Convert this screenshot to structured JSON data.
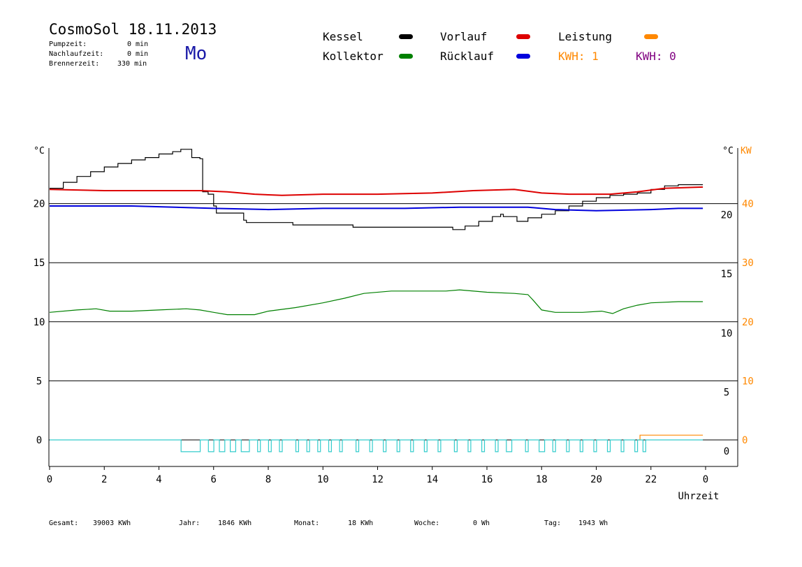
{
  "header": {
    "title": "CosmoSol 18.11.2013",
    "day": "Mo",
    "stats": [
      {
        "label": "Pumpzeit:",
        "value": "0 min"
      },
      {
        "label": "Nachlaufzeit:",
        "value": "0 min"
      },
      {
        "label": "Brennerzeit:",
        "value": "330 min"
      }
    ]
  },
  "legend": {
    "kessel": {
      "label": "Kessel",
      "color": "#000000"
    },
    "vorlauf": {
      "label": "Vorlauf",
      "color": "#dd0000"
    },
    "leistung": {
      "label": "Leistung",
      "color": "#ff8800"
    },
    "kollektor": {
      "label": "Kollektor",
      "color": "#008000"
    },
    "ruecklauf": {
      "label": "Rücklauf",
      "color": "#0000dd"
    },
    "kwh1": {
      "label": "KWH: 1",
      "color": "#ff8800"
    },
    "kwh2": {
      "label": "KWH: 0",
      "color": "#800080"
    }
  },
  "footer": {
    "gesamt": {
      "label": "Gesamt:",
      "value": "39003 KWh"
    },
    "jahr": {
      "label": "Jahr:",
      "value": "1846 KWh"
    },
    "monat": {
      "label": "Monat:",
      "value": "18 KWh"
    },
    "woche": {
      "label": "Woche:",
      "value": "0 Wh"
    },
    "tag": {
      "label": "Tag:",
      "value": "1943 Wh"
    }
  },
  "chart_data": {
    "type": "line",
    "xlabel": "Uhrzeit",
    "x_ticks": [
      "0",
      "2",
      "4",
      "6",
      "8",
      "10",
      "12",
      "14",
      "16",
      "18",
      "20",
      "22",
      "0"
    ],
    "y_left_unit": "°C",
    "y_right_unit": "°C",
    "y_right2_unit": "KW",
    "y_left_ticks": [
      "0",
      "5",
      "10",
      "15",
      "20"
    ],
    "y_right_ticks": [
      "0",
      "5",
      "10",
      "15",
      "20"
    ],
    "y_right2_ticks": [
      "0",
      "10",
      "20",
      "30",
      "40"
    ],
    "ylim": [
      -2,
      25
    ],
    "xlim": [
      0,
      24
    ],
    "series": [
      {
        "name": "Kessel",
        "color": "#000000",
        "step": true,
        "points": [
          [
            0,
            21.3
          ],
          [
            0.5,
            21.8
          ],
          [
            1,
            22.3
          ],
          [
            1.5,
            22.7
          ],
          [
            2,
            23.1
          ],
          [
            2.5,
            23.4
          ],
          [
            3,
            23.7
          ],
          [
            3.5,
            23.9
          ],
          [
            4,
            24.2
          ],
          [
            4.5,
            24.4
          ],
          [
            4.8,
            24.6
          ],
          [
            5.1,
            24.6
          ],
          [
            5.2,
            23.9
          ],
          [
            5.5,
            23.8
          ],
          [
            5.6,
            21.0
          ],
          [
            5.8,
            20.8
          ],
          [
            6.0,
            19.8
          ],
          [
            6.1,
            19.2
          ],
          [
            7.0,
            19.2
          ],
          [
            7.1,
            18.6
          ],
          [
            7.2,
            18.4
          ],
          [
            8.8,
            18.4
          ],
          [
            8.9,
            18.2
          ],
          [
            11.0,
            18.2
          ],
          [
            11.1,
            18.0
          ],
          [
            14.7,
            18.0
          ],
          [
            14.75,
            17.8
          ],
          [
            15.2,
            18.1
          ],
          [
            15.7,
            18.5
          ],
          [
            16.2,
            18.9
          ],
          [
            16.5,
            19.1
          ],
          [
            16.6,
            18.9
          ],
          [
            16.9,
            18.9
          ],
          [
            17.1,
            18.5
          ],
          [
            17.5,
            18.8
          ],
          [
            18.0,
            19.1
          ],
          [
            18.5,
            19.4
          ],
          [
            19.0,
            19.8
          ],
          [
            19.5,
            20.2
          ],
          [
            20.0,
            20.5
          ],
          [
            20.5,
            20.7
          ],
          [
            21.0,
            20.8
          ],
          [
            21.5,
            20.9
          ],
          [
            22.0,
            21.2
          ],
          [
            22.5,
            21.5
          ],
          [
            23.0,
            21.6
          ],
          [
            23.9,
            21.6
          ]
        ]
      },
      {
        "name": "Vorlauf",
        "color": "#dd0000",
        "step": false,
        "points": [
          [
            0,
            21.2
          ],
          [
            2,
            21.1
          ],
          [
            4,
            21.1
          ],
          [
            5.5,
            21.1
          ],
          [
            6.5,
            21.0
          ],
          [
            7.5,
            20.8
          ],
          [
            8.5,
            20.7
          ],
          [
            10,
            20.8
          ],
          [
            12,
            20.8
          ],
          [
            14,
            20.9
          ],
          [
            15.5,
            21.1
          ],
          [
            17,
            21.2
          ],
          [
            18,
            20.9
          ],
          [
            19,
            20.8
          ],
          [
            20.5,
            20.8
          ],
          [
            21.5,
            21.0
          ],
          [
            22.5,
            21.3
          ],
          [
            23.9,
            21.4
          ]
        ]
      },
      {
        "name": "Rücklauf",
        "color": "#0000dd",
        "step": false,
        "points": [
          [
            0,
            19.8
          ],
          [
            3,
            19.8
          ],
          [
            6,
            19.6
          ],
          [
            8,
            19.5
          ],
          [
            10,
            19.6
          ],
          [
            13,
            19.6
          ],
          [
            15,
            19.7
          ],
          [
            17.5,
            19.7
          ],
          [
            18.5,
            19.5
          ],
          [
            20,
            19.4
          ],
          [
            22,
            19.5
          ],
          [
            23,
            19.6
          ],
          [
            23.9,
            19.6
          ]
        ]
      },
      {
        "name": "Kollektor",
        "color": "#008000",
        "step": false,
        "points": [
          [
            0,
            10.8
          ],
          [
            1,
            11.0
          ],
          [
            1.7,
            11.1
          ],
          [
            2.2,
            10.9
          ],
          [
            3,
            10.9
          ],
          [
            4,
            11.0
          ],
          [
            5,
            11.1
          ],
          [
            5.5,
            11.0
          ],
          [
            6,
            10.8
          ],
          [
            6.5,
            10.6
          ],
          [
            7.5,
            10.6
          ],
          [
            8,
            10.9
          ],
          [
            9,
            11.2
          ],
          [
            10,
            11.6
          ],
          [
            10.8,
            12.0
          ],
          [
            11.5,
            12.4
          ],
          [
            12.5,
            12.6
          ],
          [
            13.5,
            12.6
          ],
          [
            14.5,
            12.6
          ],
          [
            15,
            12.7
          ],
          [
            16,
            12.5
          ],
          [
            17,
            12.4
          ],
          [
            17.5,
            12.3
          ],
          [
            17.7,
            11.8
          ],
          [
            18,
            11.0
          ],
          [
            18.5,
            10.8
          ],
          [
            19.5,
            10.8
          ],
          [
            20.2,
            10.9
          ],
          [
            20.6,
            10.7
          ],
          [
            21,
            11.1
          ],
          [
            21.5,
            11.4
          ],
          [
            22,
            11.6
          ],
          [
            23,
            11.7
          ],
          [
            23.9,
            11.7
          ]
        ]
      },
      {
        "name": "Leistung",
        "color": "#ff8800",
        "step": true,
        "points": [
          [
            21.55,
            0
          ],
          [
            21.6,
            0.4
          ],
          [
            23.9,
            0.4
          ]
        ]
      },
      {
        "name": "Brenner",
        "color": "#33cccc",
        "step": true,
        "points": [
          [
            0,
            0
          ],
          [
            4.8,
            0
          ],
          [
            4.81,
            -1.0
          ],
          [
            5.5,
            -1.0
          ],
          [
            5.51,
            0
          ],
          [
            5.8,
            0
          ],
          [
            5.81,
            -1.0
          ],
          [
            6.0,
            -1.0
          ],
          [
            6.01,
            0
          ],
          [
            6.2,
            0
          ],
          [
            6.21,
            -1.0
          ],
          [
            6.4,
            -1.0
          ],
          [
            6.41,
            0
          ],
          [
            6.6,
            0
          ],
          [
            6.61,
            -1.0
          ],
          [
            6.8,
            -1.0
          ],
          [
            6.81,
            0
          ],
          [
            7.0,
            0
          ],
          [
            7.01,
            -1.0
          ],
          [
            7.3,
            -1.0
          ],
          [
            7.31,
            0
          ],
          [
            7.6,
            0
          ],
          [
            7.61,
            -1.0
          ],
          [
            7.7,
            -1.0
          ],
          [
            7.71,
            0
          ],
          [
            8.0,
            0
          ],
          [
            8.01,
            -1.0
          ],
          [
            8.1,
            -1.0
          ],
          [
            8.11,
            0
          ],
          [
            8.4,
            0
          ],
          [
            8.41,
            -1.0
          ],
          [
            8.5,
            -1.0
          ],
          [
            8.51,
            0
          ],
          [
            9.0,
            0
          ],
          [
            9.01,
            -1.0
          ],
          [
            9.1,
            -1.0
          ],
          [
            9.11,
            0
          ],
          [
            9.4,
            0
          ],
          [
            9.41,
            -1.0
          ],
          [
            9.5,
            -1.0
          ],
          [
            9.51,
            0
          ],
          [
            9.8,
            0
          ],
          [
            9.81,
            -1.0
          ],
          [
            9.9,
            -1.0
          ],
          [
            9.91,
            0
          ],
          [
            10.2,
            0
          ],
          [
            10.21,
            -1.0
          ],
          [
            10.3,
            -1.0
          ],
          [
            10.31,
            0
          ],
          [
            10.6,
            0
          ],
          [
            10.61,
            -1.0
          ],
          [
            10.7,
            -1.0
          ],
          [
            10.71,
            0
          ],
          [
            11.2,
            0
          ],
          [
            11.21,
            -1.0
          ],
          [
            11.3,
            -1.0
          ],
          [
            11.31,
            0
          ],
          [
            11.7,
            0
          ],
          [
            11.71,
            -1.0
          ],
          [
            11.8,
            -1.0
          ],
          [
            11.81,
            0
          ],
          [
            12.2,
            0
          ],
          [
            12.21,
            -1.0
          ],
          [
            12.3,
            -1.0
          ],
          [
            12.31,
            0
          ],
          [
            12.7,
            0
          ],
          [
            12.71,
            -1.0
          ],
          [
            12.8,
            -1.0
          ],
          [
            12.81,
            0
          ],
          [
            13.2,
            0
          ],
          [
            13.21,
            -1.0
          ],
          [
            13.3,
            -1.0
          ],
          [
            13.31,
            0
          ],
          [
            13.7,
            0
          ],
          [
            13.71,
            -1.0
          ],
          [
            13.8,
            -1.0
          ],
          [
            13.81,
            0
          ],
          [
            14.2,
            0
          ],
          [
            14.21,
            -1.0
          ],
          [
            14.3,
            -1.0
          ],
          [
            14.31,
            0
          ],
          [
            14.8,
            0
          ],
          [
            14.81,
            -1.0
          ],
          [
            14.9,
            -1.0
          ],
          [
            14.91,
            0
          ],
          [
            15.3,
            0
          ],
          [
            15.31,
            -1.0
          ],
          [
            15.4,
            -1.0
          ],
          [
            15.41,
            0
          ],
          [
            15.8,
            0
          ],
          [
            15.81,
            -1.0
          ],
          [
            15.9,
            -1.0
          ],
          [
            15.91,
            0
          ],
          [
            16.3,
            0
          ],
          [
            16.31,
            -1.0
          ],
          [
            16.4,
            -1.0
          ],
          [
            16.41,
            0
          ],
          [
            16.7,
            0
          ],
          [
            16.71,
            -1.0
          ],
          [
            16.9,
            -1.0
          ],
          [
            16.91,
            0
          ],
          [
            17.4,
            0
          ],
          [
            17.41,
            -1.0
          ],
          [
            17.5,
            -1.0
          ],
          [
            17.51,
            0
          ],
          [
            17.9,
            0
          ],
          [
            17.91,
            -1.0
          ],
          [
            18.1,
            -1.0
          ],
          [
            18.11,
            0
          ],
          [
            18.4,
            0
          ],
          [
            18.41,
            -1.0
          ],
          [
            18.5,
            -1.0
          ],
          [
            18.51,
            0
          ],
          [
            18.9,
            0
          ],
          [
            18.91,
            -1.0
          ],
          [
            19.0,
            -1.0
          ],
          [
            19.01,
            0
          ],
          [
            19.4,
            0
          ],
          [
            19.41,
            -1.0
          ],
          [
            19.5,
            -1.0
          ],
          [
            19.51,
            0
          ],
          [
            19.9,
            0
          ],
          [
            19.91,
            -1.0
          ],
          [
            20.0,
            -1.0
          ],
          [
            20.01,
            0
          ],
          [
            20.4,
            0
          ],
          [
            20.41,
            -1.0
          ],
          [
            20.5,
            -1.0
          ],
          [
            20.51,
            0
          ],
          [
            20.9,
            0
          ],
          [
            20.91,
            -1.0
          ],
          [
            21.0,
            -1.0
          ],
          [
            21.01,
            0
          ],
          [
            21.4,
            0
          ],
          [
            21.41,
            -1.0
          ],
          [
            21.5,
            -1.0
          ],
          [
            21.51,
            0
          ],
          [
            21.7,
            0
          ],
          [
            21.71,
            -1.0
          ],
          [
            21.8,
            -1.0
          ],
          [
            21.81,
            0
          ],
          [
            23.9,
            0
          ]
        ]
      }
    ]
  }
}
